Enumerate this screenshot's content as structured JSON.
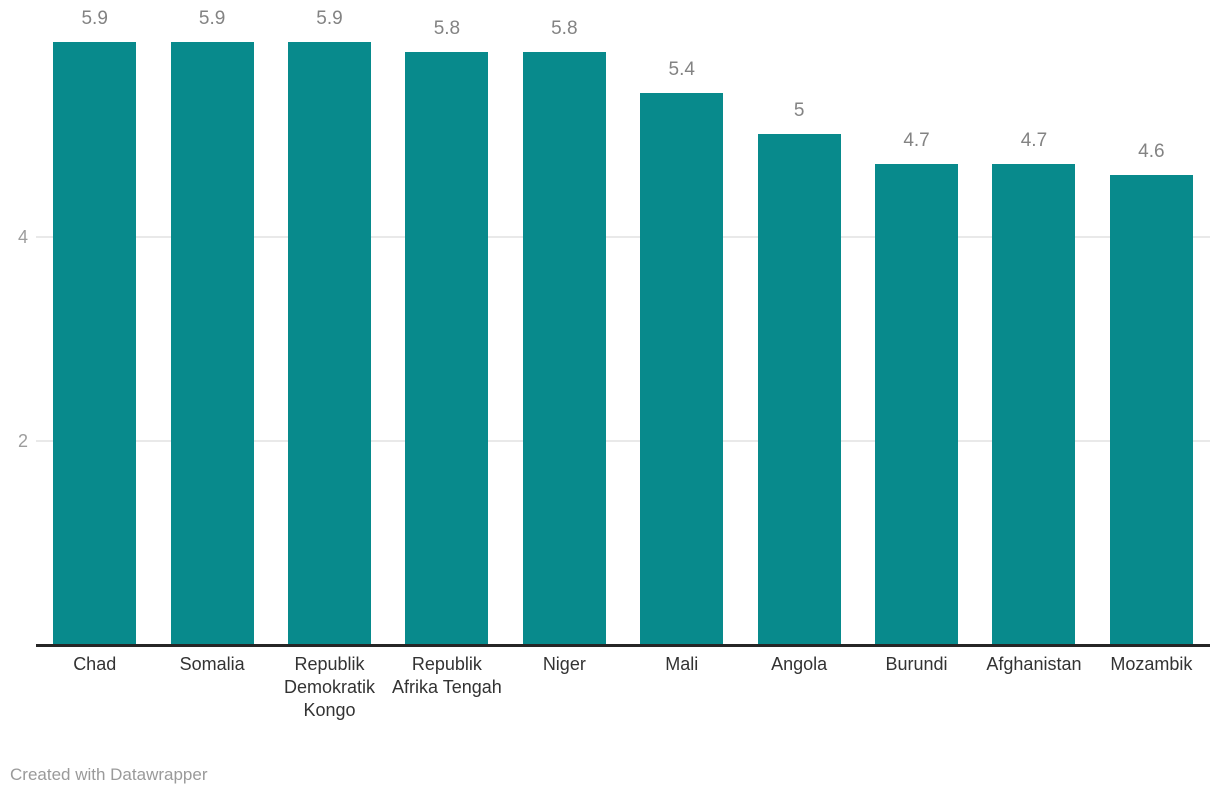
{
  "chart_data": {
    "type": "bar",
    "categories": [
      "Chad",
      "Somalia",
      "Republik Demokratik Kongo",
      "Republik Afrika Tengah",
      "Niger",
      "Mali",
      "Angola",
      "Burundi",
      "Afghanistan",
      "Mozambik"
    ],
    "values": [
      5.9,
      5.9,
      5.9,
      5.8,
      5.8,
      5.4,
      5,
      4.7,
      4.7,
      4.6
    ],
    "value_labels": [
      "5.9",
      "5.9",
      "5.9",
      "5.8",
      "5.8",
      "5.4",
      "5",
      "4.7",
      "4.7",
      "4.6"
    ],
    "title": "",
    "xlabel": "",
    "ylabel": "",
    "ylim": [
      0,
      6.31
    ],
    "yticks": [
      2,
      4
    ],
    "grid": true,
    "legend": false,
    "bar_color": "#088a8c"
  },
  "colors": {
    "bar": "#088a8c",
    "gridline": "#e9e9e9",
    "axis_line": "#262626",
    "value_label": "#838383",
    "ytick_label": "#9d9d9d",
    "xtick_label": "#333333",
    "credit": "#9a9a9a",
    "background": "#ffffff"
  },
  "footer": {
    "credit": "Created with Datawrapper"
  }
}
